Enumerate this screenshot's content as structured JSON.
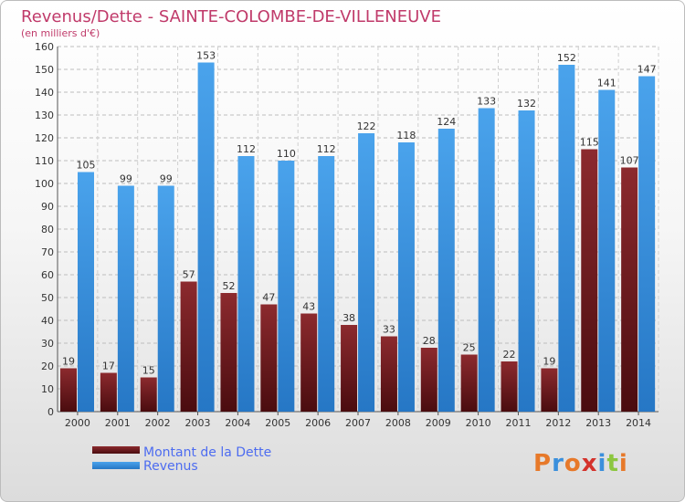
{
  "chart_data": {
    "type": "bar",
    "title": "Revenus/Dette - SAINTE-COLOMBE-DE-VILLENEUVE",
    "subtitle": "(en milliers d'€)",
    "categories": [
      "2000",
      "2001",
      "2002",
      "2003",
      "2004",
      "2005",
      "2006",
      "2007",
      "2008",
      "2009",
      "2010",
      "2011",
      "2012",
      "2013",
      "2014"
    ],
    "series": [
      {
        "name": "Montant de la Dette",
        "color": "#7a1e22",
        "values": [
          19,
          17,
          15,
          57,
          52,
          47,
          43,
          38,
          33,
          28,
          25,
          22,
          19,
          115,
          107
        ]
      },
      {
        "name": "Revenus",
        "color": "#3a8fdc",
        "values": [
          105,
          99,
          99,
          153,
          112,
          110,
          112,
          122,
          118,
          124,
          133,
          132,
          152,
          141,
          147
        ]
      }
    ],
    "ylim": [
      0,
      160
    ],
    "ytick_step": 10,
    "grid": true,
    "legend_position": "bottom-left"
  },
  "logo": {
    "text": "Proxiti",
    "colors": [
      "#e7792a",
      "#3a8fdc",
      "#e7792a",
      "#d4322c",
      "#3a8fdc",
      "#8cc63f",
      "#e7792a"
    ]
  }
}
